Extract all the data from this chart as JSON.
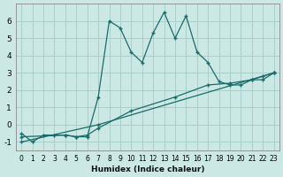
{
  "xlabel": "Humidex (Indice chaleur)",
  "bg_color": "#cce8e4",
  "line_color": "#1a6b6b",
  "grid_color": "#aacfca",
  "xlim": [
    -0.5,
    23.5
  ],
  "ylim": [
    -1.5,
    7.0
  ],
  "xticks": [
    0,
    1,
    2,
    3,
    4,
    5,
    6,
    7,
    8,
    9,
    10,
    11,
    12,
    13,
    14,
    15,
    16,
    17,
    18,
    19,
    20,
    21,
    22,
    23
  ],
  "yticks": [
    -1,
    0,
    1,
    2,
    3,
    4,
    5,
    6
  ],
  "jagged_x": [
    0,
    1,
    2,
    3,
    4,
    5,
    6,
    7,
    8,
    9,
    10,
    11,
    12,
    13,
    14,
    15,
    16,
    17,
    18,
    19,
    20,
    21,
    22,
    23
  ],
  "jagged_y": [
    -0.5,
    -1.0,
    -0.6,
    -0.6,
    -0.6,
    -0.7,
    -0.7,
    1.6,
    6.0,
    5.6,
    4.2,
    3.6,
    5.3,
    6.5,
    5.0,
    6.3,
    4.2,
    3.6,
    2.5,
    2.3,
    2.3,
    2.6,
    2.6,
    3.0
  ],
  "line2_x": [
    0,
    7,
    23
  ],
  "line2_y": [
    -1.0,
    0.0,
    3.0
  ],
  "line3_x": [
    0,
    4,
    5,
    6,
    7,
    10,
    14,
    17,
    19,
    21,
    22,
    23
  ],
  "line3_y": [
    -0.7,
    -0.6,
    -0.7,
    -0.6,
    -0.2,
    0.8,
    1.6,
    2.3,
    2.4,
    2.6,
    2.8,
    3.0
  ]
}
